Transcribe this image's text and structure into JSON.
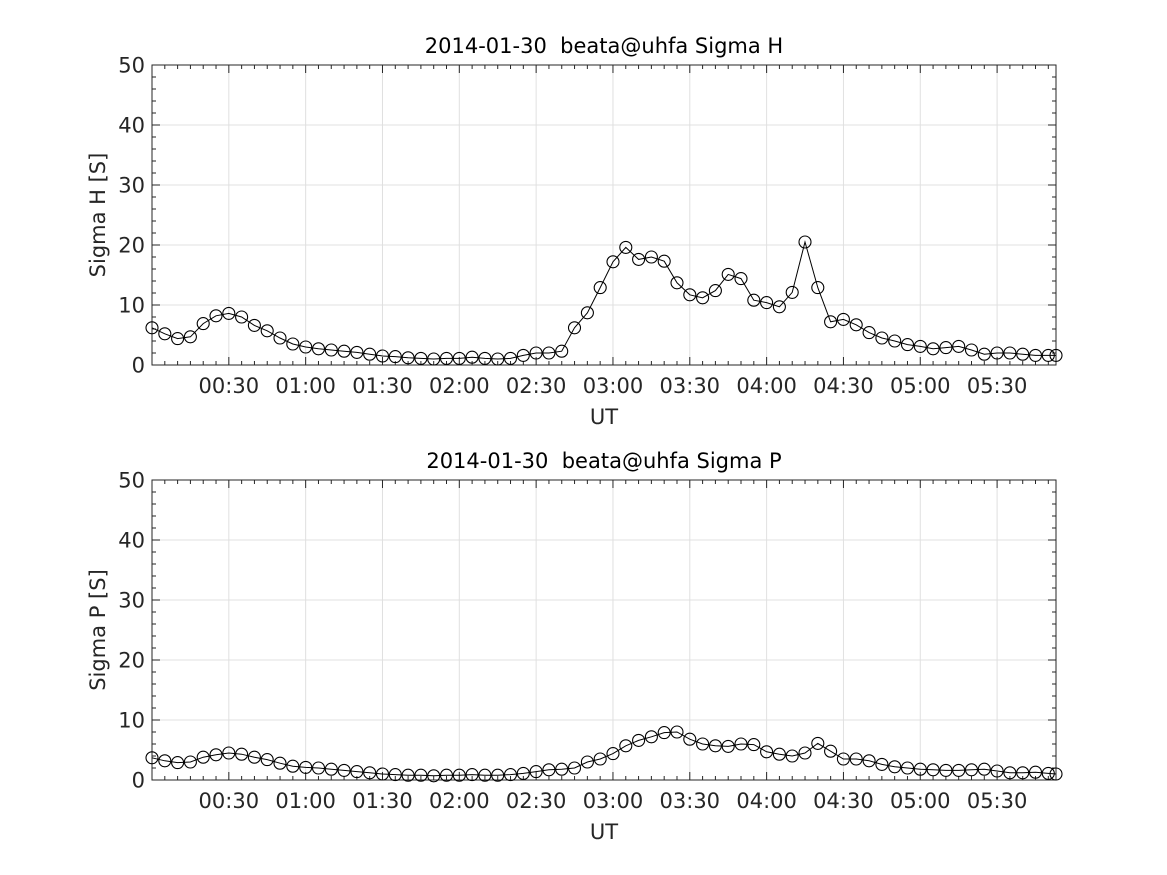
{
  "chart_data": [
    {
      "type": "line",
      "title": "2014-01-30  beata@uhfa Sigma H",
      "xlabel": "UT",
      "ylabel": "Sigma H [S]",
      "xlim": [
        "00:00",
        "05:53"
      ],
      "ylim": [
        0,
        50
      ],
      "yticks": [
        "0",
        "10",
        "20",
        "30",
        "40",
        "50"
      ],
      "xticks": [
        "00:30",
        "01:00",
        "01:30",
        "02:00",
        "02:30",
        "03:00",
        "03:30",
        "04:00",
        "04:30",
        "05:00",
        "05:30"
      ],
      "grid": true,
      "marker": "open-circle",
      "color": "#000000",
      "x": [
        "00:00",
        "00:05",
        "00:10",
        "00:15",
        "00:20",
        "00:25",
        "00:30",
        "00:35",
        "00:40",
        "00:45",
        "00:50",
        "00:55",
        "01:00",
        "01:05",
        "01:10",
        "01:15",
        "01:20",
        "01:25",
        "01:30",
        "01:35",
        "01:40",
        "01:45",
        "01:50",
        "01:55",
        "02:00",
        "02:05",
        "02:10",
        "02:15",
        "02:20",
        "02:25",
        "02:30",
        "02:35",
        "02:40",
        "02:45",
        "02:50",
        "02:55",
        "03:00",
        "03:05",
        "03:10",
        "03:15",
        "03:20",
        "03:25",
        "03:30",
        "03:35",
        "03:40",
        "03:45",
        "03:50",
        "03:55",
        "04:00",
        "04:05",
        "04:10",
        "04:15",
        "04:20",
        "04:25",
        "04:30",
        "04:35",
        "04:40",
        "04:45",
        "04:50",
        "04:55",
        "05:00",
        "05:05",
        "05:10",
        "05:15",
        "05:20",
        "05:25",
        "05:30",
        "05:35",
        "05:40",
        "05:45",
        "05:50",
        "05:53"
      ],
      "values": [
        6.2,
        5.2,
        4.4,
        4.7,
        6.9,
        8.2,
        8.6,
        8.0,
        6.6,
        5.7,
        4.5,
        3.5,
        3.0,
        2.7,
        2.5,
        2.3,
        2.1,
        1.8,
        1.5,
        1.4,
        1.2,
        1.1,
        1.0,
        1.1,
        1.1,
        1.3,
        1.1,
        1.0,
        1.1,
        1.6,
        2.0,
        2.0,
        2.3,
        6.2,
        8.7,
        12.9,
        17.2,
        19.6,
        17.6,
        18.0,
        17.3,
        13.7,
        11.7,
        11.2,
        12.4,
        15.1,
        14.4,
        10.8,
        10.4,
        9.7,
        12.1,
        20.5,
        12.9,
        7.2,
        7.6,
        6.7,
        5.4,
        4.5,
        4.0,
        3.4,
        3.1,
        2.7,
        2.9,
        3.1,
        2.5,
        1.8,
        2.0,
        2.0,
        1.8,
        1.6,
        1.6,
        1.6
      ]
    },
    {
      "type": "line",
      "title": "2014-01-30  beata@uhfa Sigma P",
      "xlabel": "UT",
      "ylabel": "Sigma P [S]",
      "xlim": [
        "00:00",
        "05:53"
      ],
      "ylim": [
        0,
        50
      ],
      "yticks": [
        "0",
        "10",
        "20",
        "30",
        "40",
        "50"
      ],
      "xticks": [
        "00:30",
        "01:00",
        "01:30",
        "02:00",
        "02:30",
        "03:00",
        "03:30",
        "04:00",
        "04:30",
        "05:00",
        "05:30"
      ],
      "grid": true,
      "marker": "open-circle",
      "color": "#000000",
      "x": [
        "00:00",
        "00:05",
        "00:10",
        "00:15",
        "00:20",
        "00:25",
        "00:30",
        "00:35",
        "00:40",
        "00:45",
        "00:50",
        "00:55",
        "01:00",
        "01:05",
        "01:10",
        "01:15",
        "01:20",
        "01:25",
        "01:30",
        "01:35",
        "01:40",
        "01:45",
        "01:50",
        "01:55",
        "02:00",
        "02:05",
        "02:10",
        "02:15",
        "02:20",
        "02:25",
        "02:30",
        "02:35",
        "02:40",
        "02:45",
        "02:50",
        "02:55",
        "03:00",
        "03:05",
        "03:10",
        "03:15",
        "03:20",
        "03:25",
        "03:30",
        "03:35",
        "03:40",
        "03:45",
        "03:50",
        "03:55",
        "04:00",
        "04:05",
        "04:10",
        "04:15",
        "04:20",
        "04:25",
        "04:30",
        "04:35",
        "04:40",
        "04:45",
        "04:50",
        "04:55",
        "05:00",
        "05:05",
        "05:10",
        "05:15",
        "05:20",
        "05:25",
        "05:30",
        "05:35",
        "05:40",
        "05:45",
        "05:50",
        "05:53"
      ],
      "values": [
        3.7,
        3.2,
        2.9,
        3.0,
        3.8,
        4.2,
        4.5,
        4.3,
        3.8,
        3.4,
        2.8,
        2.3,
        2.1,
        2.0,
        1.8,
        1.6,
        1.4,
        1.2,
        1.0,
        0.9,
        0.8,
        0.8,
        0.7,
        0.8,
        0.8,
        0.9,
        0.8,
        0.8,
        0.9,
        1.1,
        1.4,
        1.7,
        1.8,
        2.0,
        3.0,
        3.5,
        4.4,
        5.7,
        6.6,
        7.2,
        7.9,
        8.0,
        6.8,
        6.0,
        5.7,
        5.6,
        6.0,
        5.9,
        4.7,
        4.3,
        4.0,
        4.5,
        6.1,
        4.8,
        3.5,
        3.5,
        3.2,
        2.6,
        2.2,
        2.0,
        1.8,
        1.7,
        1.6,
        1.6,
        1.7,
        1.8,
        1.5,
        1.2,
        1.2,
        1.3,
        1.1,
        1.0
      ]
    }
  ]
}
